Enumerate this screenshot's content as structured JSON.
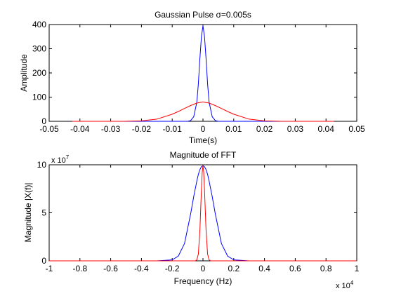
{
  "chart_data": [
    {
      "type": "line",
      "title": "Gaussian Pulse σ=0.005s",
      "xlabel": "Time(s)",
      "ylabel": "Amplitude",
      "xlim": [
        -0.05,
        0.05
      ],
      "ylim": [
        0,
        400
      ],
      "xticks": [
        -0.05,
        -0.04,
        -0.03,
        -0.02,
        -0.01,
        0,
        0.01,
        0.02,
        0.03,
        0.04,
        0.05
      ],
      "xtick_labels": [
        "-0.05",
        "-0.04",
        "-0.03",
        "-0.02",
        "-0.01",
        "0",
        "0.01",
        "0.02",
        "0.03",
        "0.04",
        "0.05"
      ],
      "yticks": [
        0,
        100,
        200,
        300,
        400
      ],
      "ytick_labels": [
        "0",
        "100",
        "200",
        "300",
        "400"
      ],
      "grid": false,
      "series": [
        {
          "color": "#0000ff",
          "x": [
            -0.0425,
            -0.02,
            -0.01,
            -0.008,
            -0.006,
            -0.005,
            -0.004,
            -0.003,
            -0.002,
            -0.0015,
            -0.001,
            -0.0005,
            0,
            0.0005,
            0.001,
            0.0015,
            0.002,
            0.003,
            0.004,
            0.005,
            0.006,
            0.008,
            0.01,
            0.02,
            0.0425
          ],
          "y": [
            0,
            0,
            0,
            0,
            0,
            0,
            3,
            19,
            79,
            155,
            260,
            350,
            395,
            350,
            260,
            155,
            79,
            19,
            3,
            0,
            0,
            0,
            0,
            0,
            0
          ]
        },
        {
          "color": "#ff0000",
          "x": [
            -0.0425,
            -0.03,
            -0.025,
            -0.02,
            -0.015,
            -0.01,
            -0.008,
            -0.006,
            -0.004,
            -0.002,
            0,
            0.002,
            0.004,
            0.006,
            0.008,
            0.01,
            0.015,
            0.02,
            0.025,
            0.03,
            0.0425
          ],
          "y": [
            0,
            0.1,
            0.3,
            1.9,
            8.9,
            29.4,
            40.6,
            53,
            65.2,
            75.3,
            80,
            75.3,
            65.2,
            53,
            40.6,
            29.4,
            8.9,
            1.9,
            0.3,
            0.1,
            0
          ]
        }
      ]
    },
    {
      "type": "line",
      "title": "Magnitude of FFT",
      "xlabel": "Frequency (Hz)",
      "ylabel": "Magnitude |X(f)|",
      "x_multiplier": "x 10",
      "x_multiplier_exp": "4",
      "y_multiplier": "x 10",
      "y_multiplier_exp": "7",
      "xlim": [
        -1,
        1
      ],
      "ylim": [
        0,
        10
      ],
      "xticks": [
        -1,
        -0.8,
        -0.6,
        -0.4,
        -0.2,
        0,
        0.2,
        0.4,
        0.6,
        0.8,
        1
      ],
      "xtick_labels": [
        "-1",
        "-0.8",
        "-0.6",
        "-0.4",
        "-0.2",
        "0",
        "0.2",
        "0.4",
        "0.6",
        "0.8",
        "1"
      ],
      "yticks": [
        0,
        5,
        10
      ],
      "ytick_labels": [
        "0",
        "5",
        "10"
      ],
      "grid": false,
      "series": [
        {
          "color": "#0000ff",
          "x": [
            -1,
            -0.3,
            -0.2,
            -0.16,
            -0.12,
            -0.08,
            -0.06,
            -0.04,
            -0.03,
            -0.02,
            -0.01,
            0,
            0.01,
            0.02,
            0.03,
            0.04,
            0.06,
            0.08,
            0.12,
            0.16,
            0.2,
            0.3,
            1
          ],
          "y": [
            0,
            0,
            0.1,
            0.5,
            1.8,
            4.9,
            6.7,
            8.3,
            9,
            9.5,
            9.8,
            9.9,
            9.8,
            9.5,
            9,
            8.3,
            6.7,
            4.9,
            1.8,
            0.5,
            0.1,
            0,
            0
          ]
        },
        {
          "color": "#ff0000",
          "x": [
            -1,
            -0.05,
            -0.04,
            -0.03,
            -0.02,
            -0.015,
            -0.01,
            -0.005,
            0,
            0.005,
            0.01,
            0.015,
            0.02,
            0.03,
            0.04,
            0.05,
            1
          ],
          "y": [
            0,
            0,
            0.1,
            0.7,
            3.2,
            5.3,
            7.4,
            9.2,
            9.9,
            9.2,
            7.4,
            5.3,
            3.2,
            0.7,
            0.1,
            0,
            0
          ]
        }
      ]
    }
  ]
}
